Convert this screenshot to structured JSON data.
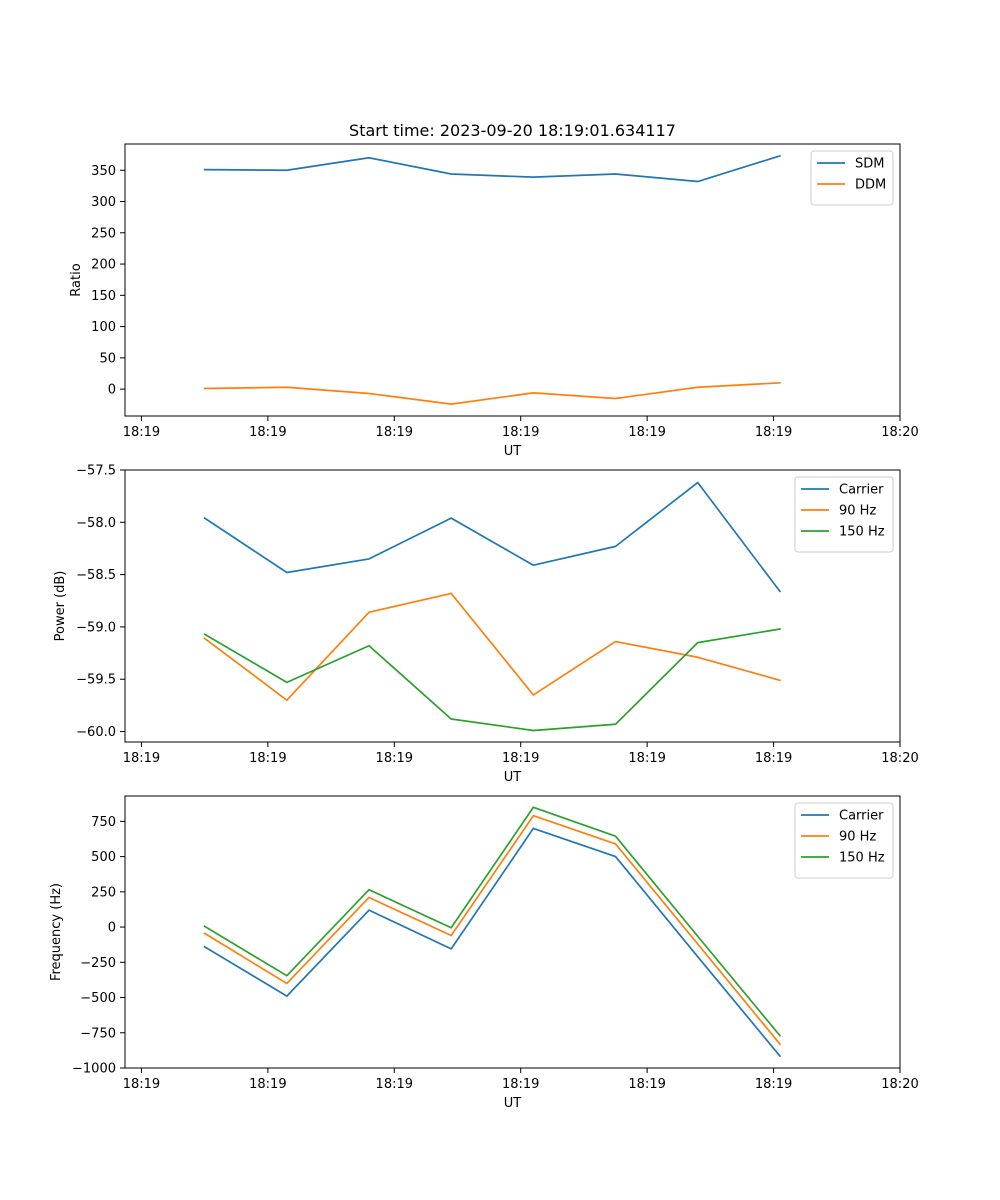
{
  "chart_data": [
    {
      "type": "line",
      "title": "Start time: 2023-09-20 18:19:01.634117",
      "xlabel": "UT",
      "ylabel": "Ratio",
      "x": [
        0.5,
        1.15,
        1.8,
        2.45,
        3.1,
        3.75,
        4.4,
        5.05
      ],
      "xlim": [
        -0.13,
        6.0
      ],
      "x_ticks": [
        0,
        1,
        2,
        3,
        4,
        5,
        6
      ],
      "x_tick_labels": [
        "18:19",
        "18:19",
        "18:19",
        "18:19",
        "18:19",
        "18:19",
        "18:20"
      ],
      "ylim": [
        -43,
        392
      ],
      "y_ticks": [
        0,
        50,
        100,
        150,
        200,
        250,
        300,
        350
      ],
      "y_tick_labels": [
        "0",
        "50",
        "100",
        "150",
        "200",
        "250",
        "300",
        "350"
      ],
      "legend_position": "top-right",
      "series": [
        {
          "name": "SDM",
          "color": "#1f77b4",
          "values": [
            351,
            350,
            370,
            344,
            339,
            344,
            332,
            373
          ]
        },
        {
          "name": "DDM",
          "color": "#ff7f0e",
          "values": [
            1,
            3,
            -7,
            -24,
            -6,
            -15,
            3,
            10
          ]
        }
      ]
    },
    {
      "type": "line",
      "title": "",
      "xlabel": "UT",
      "ylabel": "Power (dB)",
      "x": [
        0.5,
        1.15,
        1.8,
        2.45,
        3.1,
        3.75,
        4.4,
        5.05
      ],
      "xlim": [
        -0.13,
        6.0
      ],
      "x_ticks": [
        0,
        1,
        2,
        3,
        4,
        5,
        6
      ],
      "x_tick_labels": [
        "18:19",
        "18:19",
        "18:19",
        "18:19",
        "18:19",
        "18:19",
        "18:20"
      ],
      "ylim": [
        -60.1,
        -57.5
      ],
      "y_ticks": [
        -60.0,
        -59.5,
        -59.0,
        -58.5,
        -58.0,
        -57.5
      ],
      "y_tick_labels": [
        "−60.0",
        "−59.5",
        "−59.0",
        "−58.5",
        "−58.0",
        "−57.5"
      ],
      "legend_position": "top-right",
      "series": [
        {
          "name": "Carrier",
          "color": "#1f77b4",
          "values": [
            -57.96,
            -58.48,
            -58.35,
            -57.96,
            -58.41,
            -58.23,
            -57.62,
            -58.66
          ]
        },
        {
          "name": "90 Hz",
          "color": "#ff7f0e",
          "values": [
            -59.11,
            -59.7,
            -58.86,
            -58.68,
            -59.65,
            -59.14,
            -59.29,
            -59.51
          ]
        },
        {
          "name": "150 Hz",
          "color": "#2ca02c",
          "values": [
            -59.07,
            -59.53,
            -59.18,
            -59.88,
            -59.99,
            -59.93,
            -59.15,
            -59.02
          ]
        }
      ]
    },
    {
      "type": "line",
      "title": "",
      "xlabel": "UT",
      "ylabel": "Frequency (Hz)",
      "x": [
        0.5,
        1.15,
        1.8,
        2.45,
        3.1,
        3.75,
        4.4,
        5.05
      ],
      "xlim": [
        -0.13,
        6.0
      ],
      "x_ticks": [
        0,
        1,
        2,
        3,
        4,
        5,
        6
      ],
      "x_tick_labels": [
        "18:19",
        "18:19",
        "18:19",
        "18:19",
        "18:19",
        "18:19",
        "18:20"
      ],
      "ylim": [
        -1000,
        930
      ],
      "y_ticks": [
        -1000,
        -750,
        -500,
        -250,
        0,
        250,
        500,
        750
      ],
      "y_tick_labels": [
        "−1000",
        "−750",
        "−500",
        "−250",
        "0",
        "250",
        "500",
        "750"
      ],
      "legend_position": "top-right",
      "series": [
        {
          "name": "Carrier",
          "color": "#1f77b4",
          "values": [
            -140,
            -490,
            120,
            -155,
            700,
            500,
            -210,
            -915
          ]
        },
        {
          "name": "90 Hz",
          "color": "#ff7f0e",
          "values": [
            -45,
            -400,
            210,
            -60,
            790,
            590,
            -120,
            -830
          ]
        },
        {
          "name": "150 Hz",
          "color": "#2ca02c",
          "values": [
            5,
            -345,
            265,
            -5,
            850,
            645,
            -65,
            -770
          ]
        }
      ]
    }
  ]
}
